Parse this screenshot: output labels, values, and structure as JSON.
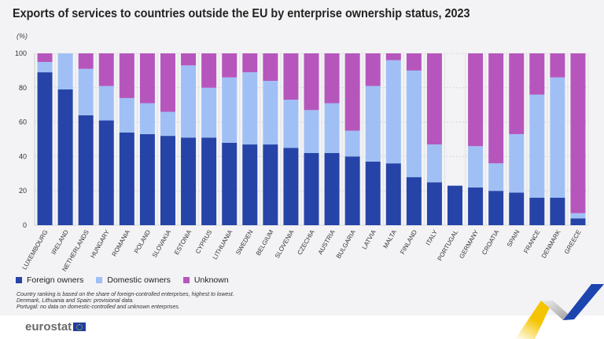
{
  "chart_data": {
    "type": "bar",
    "stacked": true,
    "title": "Exports of services to countries outside the EU by enterprise ownership status, 2023",
    "unit": "(%)",
    "ylim": [
      0,
      100
    ],
    "yticks": [
      0,
      20,
      40,
      60,
      80,
      100
    ],
    "grid": true,
    "legend_placement": "bottom-left",
    "categories": [
      "LUXEMBOURG",
      "IRELAND",
      "NETHERLANDS",
      "HUNGARY",
      "ROMANIA",
      "POLAND",
      "SLOVAKIA",
      "ESTONIA",
      "CYPRUS",
      "LITHUANIA",
      "SWEDEN",
      "BELGIUM",
      "SLOVENIA",
      "CZECHIA",
      "AUSTRIA",
      "BULGARIA",
      "LATVIA",
      "MALTA",
      "FINLAND",
      "ITALY",
      "PORTUGAL",
      "GERMANY",
      "CROATIA",
      "SPAIN",
      "FRANCE",
      "DENMARK",
      "GREECE"
    ],
    "series": [
      {
        "name": "Foreign owners",
        "color": "#2644a7",
        "values": [
          89,
          79,
          64,
          61,
          54,
          53,
          52,
          51,
          51,
          48,
          47,
          47,
          45,
          42,
          42,
          40,
          37,
          36,
          28,
          25,
          23,
          22,
          20,
          19,
          16,
          16,
          4
        ]
      },
      {
        "name": "Domestic owners",
        "color": "#a0c0f5",
        "values": [
          6,
          21,
          27,
          20,
          20,
          18,
          14,
          42,
          29,
          38,
          42,
          37,
          28,
          25,
          29,
          15,
          44,
          60,
          62,
          22,
          null,
          24,
          16,
          34,
          60,
          70,
          3
        ]
      },
      {
        "name": "Unknown",
        "color": "#b656bd",
        "values": [
          5,
          0,
          9,
          19,
          26,
          29,
          34,
          7,
          20,
          14,
          11,
          16,
          27,
          33,
          29,
          45,
          19,
          4,
          10,
          53,
          null,
          54,
          64,
          47,
          24,
          14,
          93
        ]
      }
    ]
  },
  "notes": [
    "Country ranking is based on the share of foreign-controlled enterprises, highest to lowest.",
    "Denmark, Lithuania and Spain: provisional data.",
    "Portugal: no data on domestic-controlled and unknown enterprises."
  ],
  "logo": "eurostat"
}
